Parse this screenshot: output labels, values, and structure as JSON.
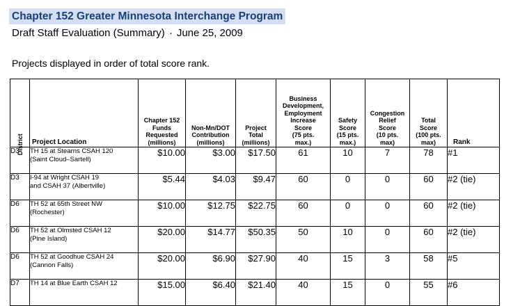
{
  "header": {
    "title": "Chapter 152 Greater Minnesota Interchange Program",
    "subtitle_left": "Draft Staff Evaluation (Summary)",
    "subtitle_separator": "·",
    "subtitle_date": "June 25, 2009",
    "order_note": "Projects displayed in order of total score rank."
  },
  "columns": {
    "district": "District",
    "location": "Project Location",
    "funds": [
      "Chapter 152",
      "Funds",
      "Requested",
      "(millions)"
    ],
    "nonmndot": [
      "Non-Mn/DOT",
      "Contribution",
      "(millions)"
    ],
    "total": [
      "Project",
      "Total",
      "(millions)"
    ],
    "business": [
      "Business",
      "Development,",
      "Employment",
      "Increase",
      "Score",
      "(75 pts.",
      "max.)"
    ],
    "safety": [
      "Safety",
      "Score",
      "(15 pts.",
      "max.)"
    ],
    "congestion": [
      "Congestion",
      "Relief",
      "Score",
      "(10 pts.",
      "max)"
    ],
    "totalscore": [
      "Total",
      "Score",
      "(100 pts.",
      "max)"
    ],
    "rank": "Rank"
  },
  "rows": [
    {
      "district": "D3",
      "loc1": "TH 15 at Stearns CSAH 120",
      "loc2": "(Saint Cloud–Sartell)",
      "funds": "$10.00",
      "nonmndot": "$3.00",
      "total": "$17.50",
      "business": "61",
      "safety": "10",
      "congestion": "7",
      "totalscore": "78",
      "rank": "#1"
    },
    {
      "district": "D3",
      "loc1": "I-94 at Wright CSAH 19",
      "loc2": "and CSAH 37 (Albertville)",
      "funds": "$5.44",
      "nonmndot": "$4.03",
      "total": "$9.47",
      "business": "60",
      "safety": "0",
      "congestion": "0",
      "totalscore": "60",
      "rank": "#2 (tie)"
    },
    {
      "district": "D6",
      "loc1": "TH 52 at 65th Street NW",
      "loc2": "(Rochester)",
      "funds": "$10.00",
      "nonmndot": "$12.75",
      "total": "$22.75",
      "business": "60",
      "safety": "0",
      "congestion": "0",
      "totalscore": "60",
      "rank": "#2 (tie)"
    },
    {
      "district": "D6",
      "loc1": "TH 52 at Olmsted CSAH 12",
      "loc2": "(Pine Island)",
      "funds": "$20.00",
      "nonmndot": "$14.77",
      "total": "$50.35",
      "business": "50",
      "safety": "10",
      "congestion": "0",
      "totalscore": "60",
      "rank": "#2 (tie)"
    },
    {
      "district": "D6",
      "loc1": "TH 52 at Goodhue CSAH 24",
      "loc2": "(Cannon Falls)",
      "funds": "$20.00",
      "nonmndot": "$6.90",
      "total": "$27.90",
      "business": "40",
      "safety": "15",
      "congestion": "3",
      "totalscore": "58",
      "rank": "#5"
    },
    {
      "district": "D7",
      "loc1": "TH 14 at Blue Earth CSAH 12",
      "loc2": "",
      "funds": "$15.00",
      "nonmndot": "$6.40",
      "total": "$21.40",
      "business": "40",
      "safety": "15",
      "congestion": "0",
      "totalscore": "55",
      "rank": "#6"
    }
  ]
}
